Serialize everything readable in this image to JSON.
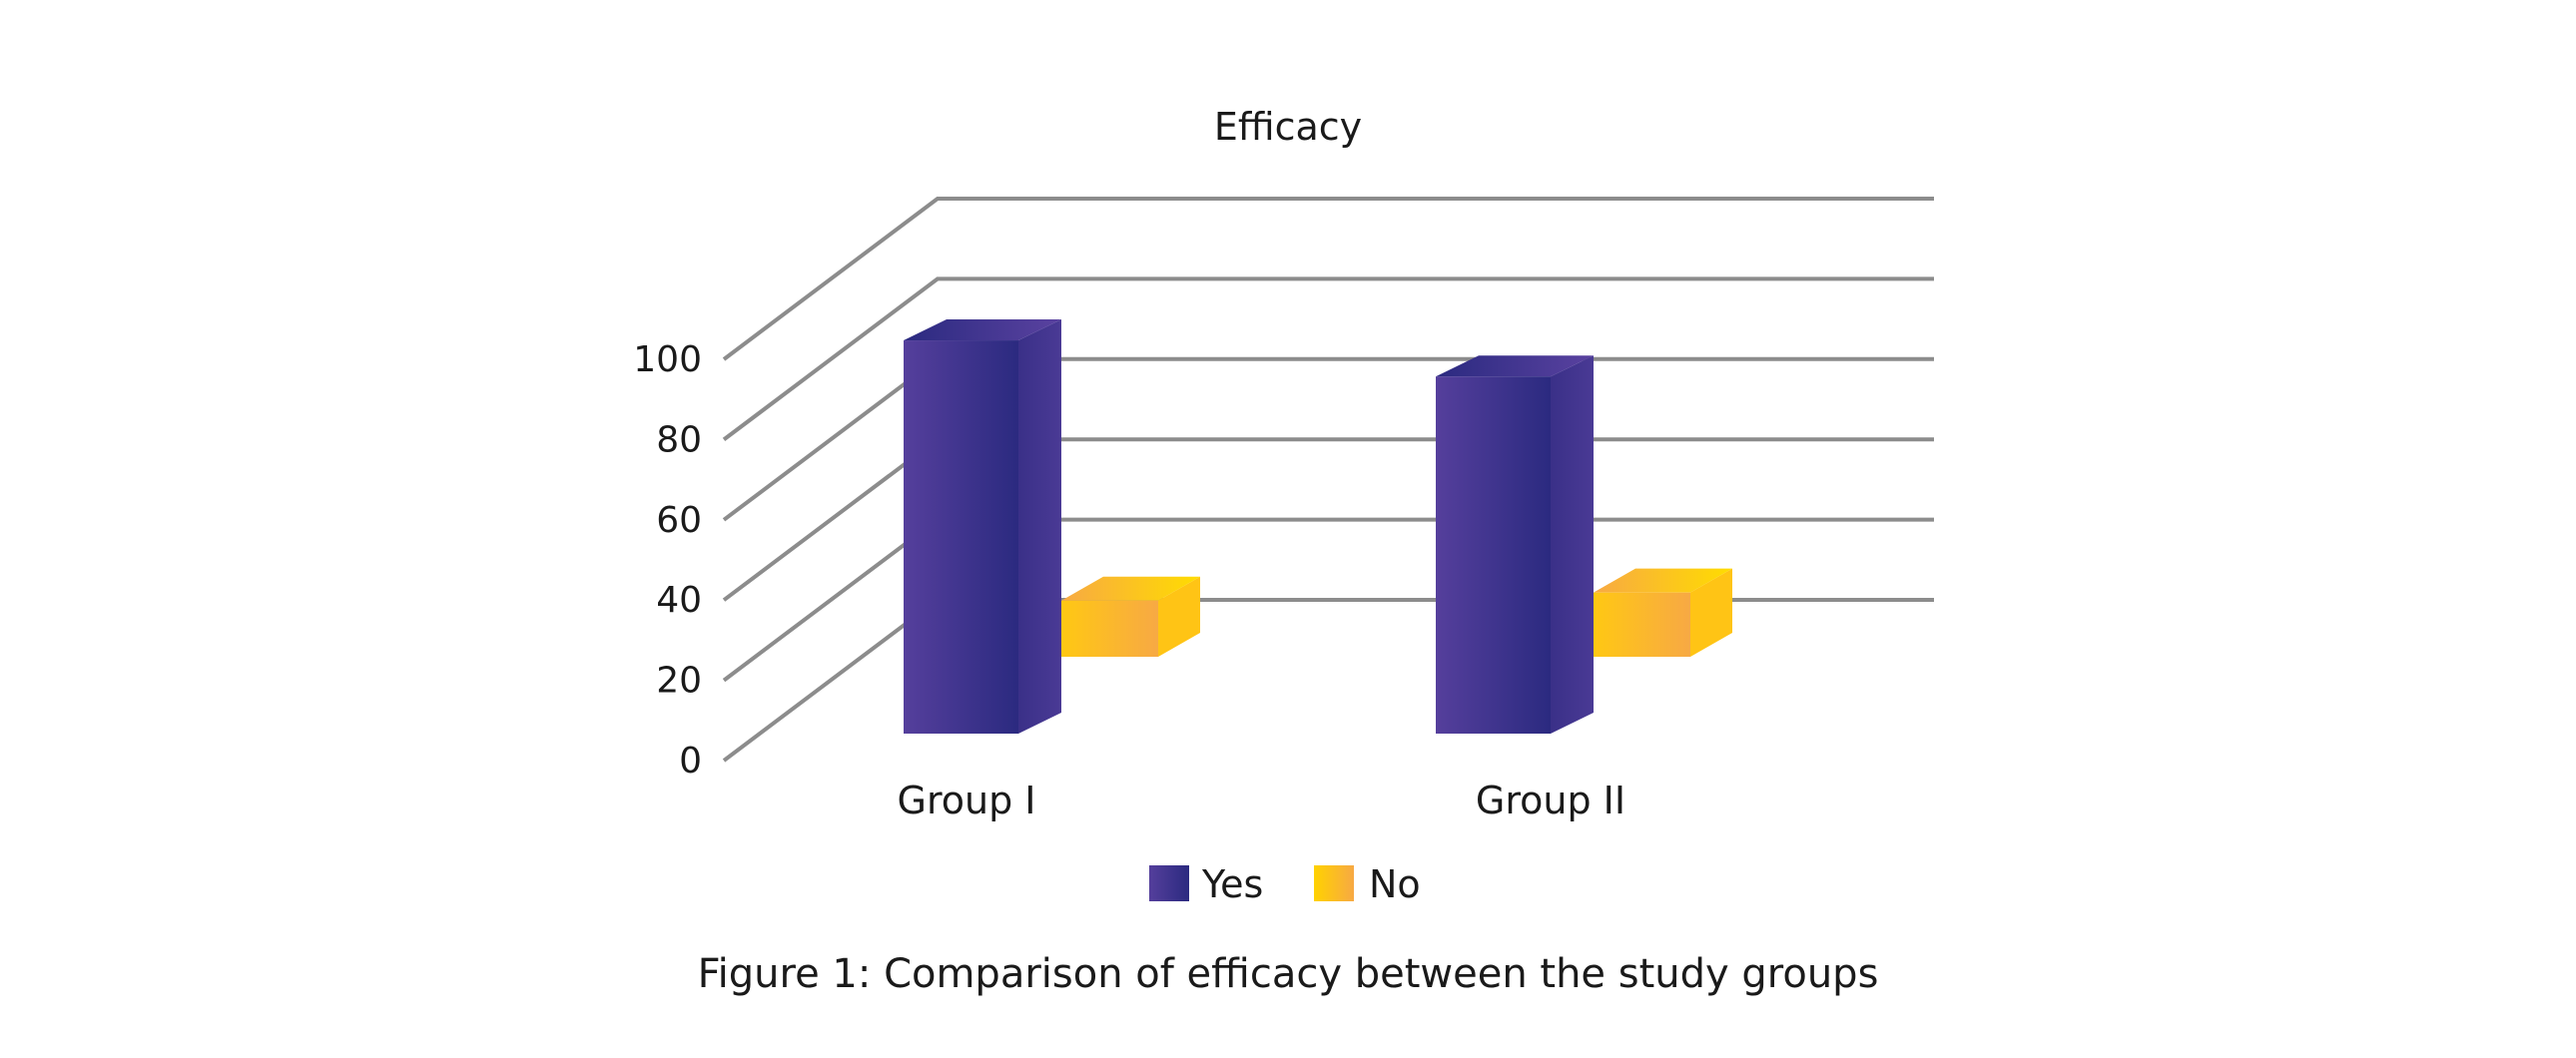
{
  "chart_data": {
    "type": "bar",
    "style": "3d-clustered-column",
    "title": "Efficacy",
    "xlabel": "",
    "ylabel": "",
    "categories": [
      "Group I",
      "Group II"
    ],
    "series": [
      {
        "name": "Yes",
        "values": [
          98,
          89
        ],
        "color_light": "#553f9c",
        "color_dark": "#2b2a80"
      },
      {
        "name": "No",
        "values": [
          14,
          16
        ],
        "color_light": "#ffd200",
        "color_dark": "#f7a944"
      }
    ],
    "ylim": [
      0,
      100
    ],
    "yticks": [
      "0",
      "20",
      "40",
      "60",
      "80",
      "100"
    ],
    "grid": true,
    "legend": {
      "position": "bottom",
      "entries": [
        "Yes",
        "No"
      ]
    },
    "caption": "Figure 1: Comparison of efficacy between the study groups"
  },
  "colors": {
    "gridline": "#8c8c8c",
    "text": "#1a1a1a",
    "background": "#ffffff"
  }
}
